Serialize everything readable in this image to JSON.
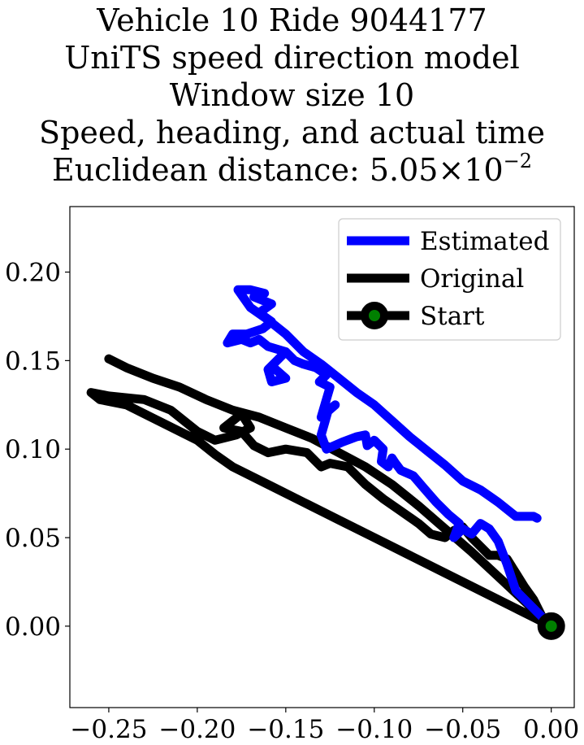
{
  "title_lines": [
    "Vehicle 10 Ride 9044177",
    "UniTS speed direction model",
    "Window size 10",
    "Speed, heading, and actual time"
  ],
  "title_metric": {
    "prefix": "Euclidean distance: ",
    "mantissa": "5.05",
    "times": "×",
    "base": "10",
    "exponent": "−2"
  },
  "chart_data": {
    "type": "line",
    "title": "Vehicle 10 Ride 9044177 UniTS speed direction model Window size 10 Speed, heading, and actual time Euclidean distance: 5.05×10−2",
    "xlabel": "",
    "ylabel": "",
    "xlim": [
      -0.272,
      0.013
    ],
    "ylim": [
      -0.046,
      0.237
    ],
    "xticks": [
      -0.25,
      -0.2,
      -0.15,
      -0.1,
      -0.05,
      0.0
    ],
    "xtick_labels": [
      "−0.25",
      "−0.20",
      "−0.15",
      "−0.10",
      "−0.05",
      "0.00"
    ],
    "yticks": [
      0.0,
      0.05,
      0.1,
      0.15,
      0.2
    ],
    "ytick_labels": [
      "0.00",
      "0.05",
      "0.10",
      "0.15",
      "0.20"
    ],
    "grid": false,
    "legend_position": "top-right",
    "series": [
      {
        "name": "Estimated",
        "color": "#0000ff",
        "x": [
          0.0,
          -0.01,
          -0.02,
          -0.025,
          -0.03,
          -0.035,
          -0.04,
          -0.045,
          -0.05,
          -0.055,
          -0.052,
          -0.058,
          -0.065,
          -0.072,
          -0.078,
          -0.085,
          -0.088,
          -0.09,
          -0.092,
          -0.096,
          -0.095,
          -0.1,
          -0.104,
          -0.105,
          -0.11,
          -0.118,
          -0.127,
          -0.13,
          -0.128,
          -0.126,
          -0.122,
          -0.13,
          -0.125,
          -0.131,
          -0.127,
          -0.133,
          -0.14,
          -0.145,
          -0.15,
          -0.155,
          -0.16,
          -0.158,
          -0.15,
          -0.158,
          -0.15,
          -0.16,
          -0.165,
          -0.17,
          -0.175,
          -0.183,
          -0.18,
          -0.172,
          -0.163,
          -0.158,
          -0.165,
          -0.158,
          -0.168,
          -0.162,
          -0.17,
          -0.177,
          -0.17,
          -0.16,
          -0.15,
          -0.14,
          -0.13,
          -0.12,
          -0.11,
          -0.1,
          -0.09,
          -0.08,
          -0.07,
          -0.06,
          -0.05,
          -0.04,
          -0.03,
          -0.02,
          -0.01,
          -0.008
        ],
        "y": [
          0.0,
          0.01,
          0.02,
          0.035,
          0.048,
          0.055,
          0.058,
          0.052,
          0.055,
          0.05,
          0.058,
          0.063,
          0.07,
          0.078,
          0.085,
          0.088,
          0.092,
          0.095,
          0.09,
          0.093,
          0.1,
          0.105,
          0.102,
          0.108,
          0.107,
          0.104,
          0.1,
          0.108,
          0.115,
          0.122,
          0.125,
          0.118,
          0.135,
          0.138,
          0.142,
          0.146,
          0.148,
          0.15,
          0.155,
          0.15,
          0.145,
          0.138,
          0.14,
          0.147,
          0.155,
          0.158,
          0.162,
          0.16,
          0.162,
          0.16,
          0.165,
          0.165,
          0.168,
          0.172,
          0.177,
          0.182,
          0.186,
          0.188,
          0.19,
          0.19,
          0.18,
          0.173,
          0.165,
          0.155,
          0.148,
          0.14,
          0.132,
          0.125,
          0.116,
          0.107,
          0.099,
          0.091,
          0.082,
          0.077,
          0.07,
          0.062,
          0.062,
          0.061
        ]
      },
      {
        "name": "Original",
        "color": "#000000",
        "x": [
          0.0,
          -0.02,
          -0.04,
          -0.06,
          -0.08,
          -0.1,
          -0.12,
          -0.14,
          -0.16,
          -0.18,
          -0.19,
          -0.2,
          -0.21,
          -0.22,
          -0.23,
          -0.24,
          -0.255,
          -0.26,
          -0.25,
          -0.23,
          -0.215,
          -0.2,
          -0.19,
          -0.178,
          -0.17,
          -0.175,
          -0.18,
          -0.185,
          -0.175,
          -0.168,
          -0.16,
          -0.15,
          -0.138,
          -0.13,
          -0.125,
          -0.115,
          -0.105,
          -0.095,
          -0.085,
          -0.075,
          -0.068,
          -0.06,
          -0.055,
          -0.05,
          -0.045,
          -0.04,
          -0.035,
          -0.03,
          -0.025,
          -0.02,
          -0.015,
          -0.01,
          -0.005,
          0.0,
          -0.015,
          -0.03,
          -0.045,
          -0.06,
          -0.075,
          -0.09,
          -0.105,
          -0.12,
          -0.135,
          -0.15,
          -0.165,
          -0.18,
          -0.195,
          -0.21,
          -0.225,
          -0.24,
          -0.25
        ],
        "y": [
          0.0,
          0.01,
          0.02,
          0.03,
          0.04,
          0.05,
          0.06,
          0.07,
          0.08,
          0.09,
          0.097,
          0.105,
          0.11,
          0.115,
          0.12,
          0.125,
          0.128,
          0.132,
          0.13,
          0.128,
          0.122,
          0.11,
          0.105,
          0.108,
          0.112,
          0.12,
          0.116,
          0.112,
          0.11,
          0.102,
          0.098,
          0.1,
          0.098,
          0.09,
          0.092,
          0.09,
          0.08,
          0.072,
          0.065,
          0.058,
          0.052,
          0.05,
          0.054,
          0.056,
          0.05,
          0.045,
          0.04,
          0.04,
          0.038,
          0.03,
          0.022,
          0.015,
          0.005,
          0.0,
          0.014,
          0.028,
          0.042,
          0.055,
          0.068,
          0.08,
          0.09,
          0.098,
          0.106,
          0.112,
          0.118,
          0.122,
          0.128,
          0.135,
          0.14,
          0.146,
          0.151
        ]
      },
      {
        "name": "Start",
        "color": "#000000",
        "marker_face": "#008000",
        "x": [
          0.0
        ],
        "y": [
          0.0
        ]
      }
    ]
  }
}
